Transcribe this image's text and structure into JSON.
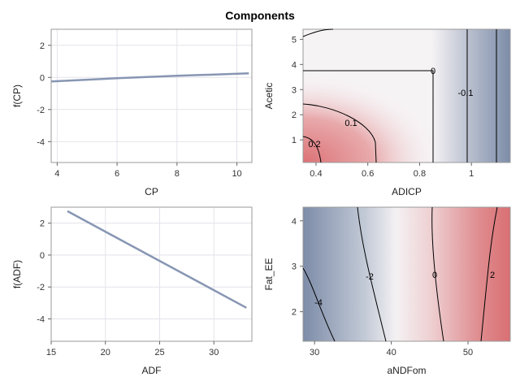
{
  "title": "Components",
  "chart_data": [
    {
      "type": "line",
      "xlabel": "CP",
      "ylabel": "f(CP)",
      "xlim": [
        3.8,
        10.5
      ],
      "ylim": [
        -5.3,
        3.0
      ],
      "xticks": [
        4,
        6,
        8,
        10
      ],
      "yticks": [
        -4,
        -2,
        0,
        2
      ],
      "grid": true,
      "series": [
        {
          "x": [
            3.8,
            6.0,
            8.0,
            10.4
          ],
          "y": [
            -0.25,
            -0.05,
            0.1,
            0.25
          ]
        }
      ],
      "color": "#8796b3"
    },
    {
      "type": "heatmap",
      "xlabel": "ADICP",
      "ylabel": "Acetic",
      "xlim": [
        0.35,
        1.15
      ],
      "ylim": [
        0.1,
        5.4
      ],
      "xticks": [
        0.4,
        0.6,
        0.8,
        1.0
      ],
      "yticks": [
        1,
        2,
        3,
        4,
        5
      ],
      "contour_labels": [
        "0.2",
        "0.1",
        "0",
        "-0.1"
      ],
      "colors": {
        "low": "#7d8ca8",
        "mid": "#f6f3f5",
        "high": "#db6f73"
      }
    },
    {
      "type": "line",
      "xlabel": "ADF",
      "ylabel": "f(ADF)",
      "xlim": [
        15,
        33.5
      ],
      "ylim": [
        -5.4,
        3.0
      ],
      "xticks": [
        15,
        20,
        25,
        30
      ],
      "yticks": [
        -4,
        -2,
        0,
        2
      ],
      "grid": true,
      "series": [
        {
          "x": [
            16.5,
            33.0
          ],
          "y": [
            2.75,
            -3.3
          ]
        }
      ],
      "color": "#8796b3"
    },
    {
      "type": "heatmap",
      "xlabel": "aNDFom",
      "ylabel": "Fat_EE",
      "xlim": [
        28.5,
        55.5
      ],
      "ylim": [
        1.35,
        4.3
      ],
      "xticks": [
        30,
        40,
        50
      ],
      "yticks": [
        2,
        3,
        4
      ],
      "contour_labels": [
        "-4",
        "-2",
        "0",
        "2"
      ],
      "colors": {
        "low": "#7d8ca8",
        "mid": "#f6f3f5",
        "high": "#db6f73"
      }
    }
  ]
}
